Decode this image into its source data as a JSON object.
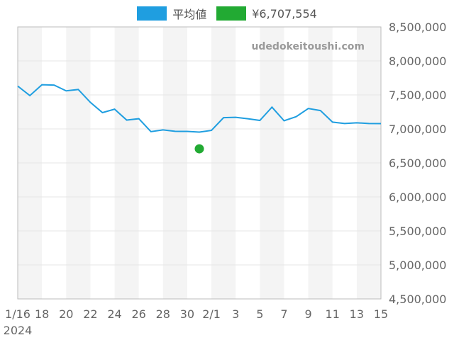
{
  "legend": {
    "average_label": "平均値",
    "marker_label": "¥6,707,554"
  },
  "watermark": "udedokeitoushi.com",
  "colors": {
    "line": "#1f9ee0",
    "point": "#22aa33",
    "band": "#f4f4f4",
    "grid": "#e6e6e6",
    "axis": "#bbbbbb"
  },
  "chart_data": {
    "type": "line",
    "x": [
      "2024-01-16",
      "2024-01-17",
      "2024-01-18",
      "2024-01-19",
      "2024-01-20",
      "2024-01-21",
      "2024-01-22",
      "2024-01-23",
      "2024-01-24",
      "2024-01-25",
      "2024-01-26",
      "2024-01-27",
      "2024-01-28",
      "2024-01-29",
      "2024-01-30",
      "2024-01-31",
      "2024-02-01",
      "2024-02-02",
      "2024-02-03",
      "2024-02-04",
      "2024-02-05",
      "2024-02-06",
      "2024-02-07",
      "2024-02-08",
      "2024-02-09",
      "2024-02-10",
      "2024-02-11",
      "2024-02-12",
      "2024-02-13",
      "2024-02-14",
      "2024-02-15"
    ],
    "series": [
      {
        "name": "平均値",
        "values": [
          7630000,
          7490000,
          7650000,
          7645000,
          7560000,
          7580000,
          7390000,
          7240000,
          7290000,
          7130000,
          7150000,
          6960000,
          6985000,
          6965000,
          6963000,
          6953000,
          6978000,
          7165000,
          7170000,
          7150000,
          7125000,
          7320000,
          7120000,
          7180000,
          7300000,
          7270000,
          7100000,
          7080000,
          7090000,
          7080000,
          7078000
        ]
      },
      {
        "name": "¥6,707,554",
        "type": "scatter",
        "points": [
          {
            "x": "2024-01-31",
            "y": 6707554
          }
        ]
      }
    ],
    "ylim": [
      4500000,
      8500000
    ],
    "yticks": [
      "4,500,000",
      "5,000,000",
      "5,500,000",
      "6,000,000",
      "6,500,000",
      "7,000,000",
      "7,500,000",
      "8,000,000",
      "8,500,000"
    ],
    "ytick_values": [
      4500000,
      5000000,
      5500000,
      6000000,
      6500000,
      7000000,
      7500000,
      8000000,
      8500000
    ],
    "xtick_labels": [
      {
        "date": "2024-01-16",
        "label": "1/16",
        "sublabel": "2024"
      },
      {
        "date": "2024-01-18",
        "label": "18"
      },
      {
        "date": "2024-01-20",
        "label": "20"
      },
      {
        "date": "2024-01-22",
        "label": "22"
      },
      {
        "date": "2024-01-24",
        "label": "24"
      },
      {
        "date": "2024-01-26",
        "label": "26"
      },
      {
        "date": "2024-01-28",
        "label": "28"
      },
      {
        "date": "2024-01-30",
        "label": "30"
      },
      {
        "date": "2024-02-01",
        "label": "2/1"
      },
      {
        "date": "2024-02-03",
        "label": "3"
      },
      {
        "date": "2024-02-05",
        "label": "5"
      },
      {
        "date": "2024-02-07",
        "label": "7"
      },
      {
        "date": "2024-02-09",
        "label": "9"
      },
      {
        "date": "2024-02-11",
        "label": "11"
      },
      {
        "date": "2024-02-13",
        "label": "13"
      },
      {
        "date": "2024-02-15",
        "label": "15"
      }
    ],
    "grid": true,
    "legend_position": "top-center",
    "yaxis_side": "right"
  }
}
